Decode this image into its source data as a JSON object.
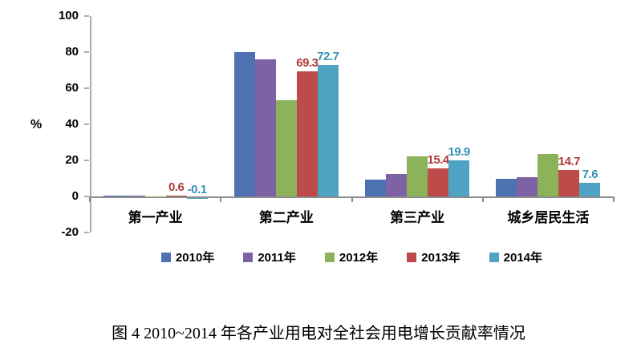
{
  "chart_data": {
    "type": "bar",
    "title": "图 4  2010~2014 年各产业用电对全社会用电增长贡献率情况",
    "ylabel": "%",
    "ylim": [
      -20,
      100
    ],
    "ytick_step": 20,
    "yticks": [
      100,
      80,
      60,
      40,
      20,
      0,
      -20
    ],
    "grid": false,
    "legend_position": "bottom",
    "categories": [
      "第一产业",
      "第二产业",
      "第三产业",
      "城乡居民生活"
    ],
    "series": [
      {
        "name": "2010年",
        "color": "#4E71B2",
        "values": [
          0.4,
          80.2,
          9.5,
          9.9
        ],
        "labels": null,
        "label_color": null
      },
      {
        "name": "2011年",
        "color": "#7E62A6",
        "values": [
          0.3,
          76.0,
          12.4,
          10.5
        ],
        "labels": null,
        "label_color": null
      },
      {
        "name": "2012年",
        "color": "#8CB35A",
        "values": [
          0.2,
          53.5,
          22.4,
          23.5
        ],
        "labels": null,
        "label_color": null
      },
      {
        "name": "2013年",
        "color": "#BC4B49",
        "values": [
          0.6,
          69.3,
          15.4,
          14.7
        ],
        "labels": [
          "0.6",
          "69.3",
          "15.4",
          "14.7"
        ],
        "label_color": "#AE3B38"
      },
      {
        "name": "2014年",
        "color": "#4FA3C2",
        "values": [
          -0.1,
          72.7,
          19.9,
          7.6
        ],
        "labels": [
          "-0.1",
          "72.7",
          "19.9",
          "7.6"
        ],
        "label_color": "#3690B4"
      }
    ]
  }
}
